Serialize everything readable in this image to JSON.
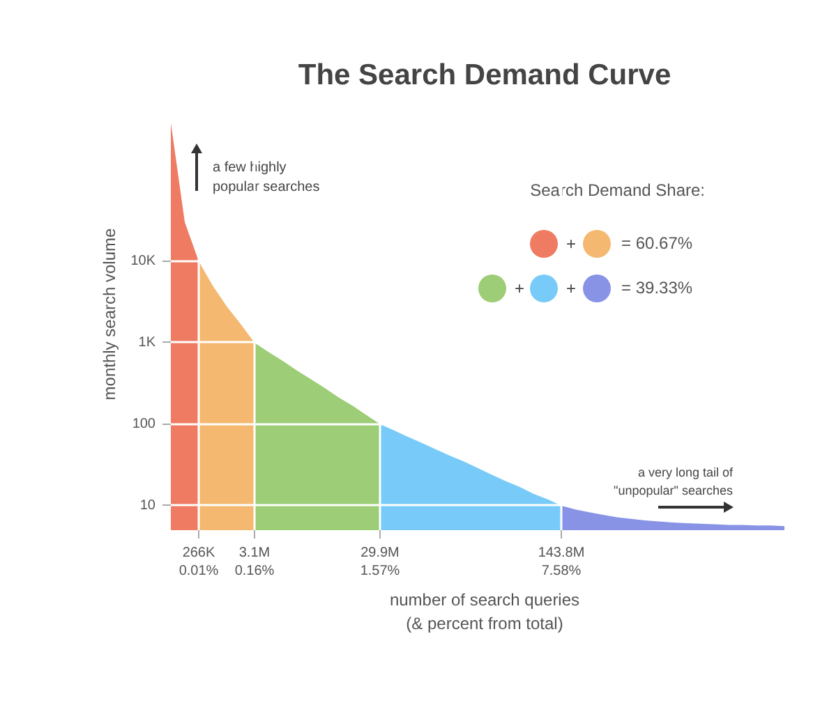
{
  "chart_data": {
    "type": "area",
    "title": "The Search Demand Curve",
    "xlabel": "number of search queries\n(& percent from total)",
    "ylabel": "monthly search volume",
    "categories": [
      null,
      null,
      "266K\n0.01%",
      null,
      null,
      null,
      "3.1M\n0.16%",
      null,
      null,
      null,
      null,
      null,
      null,
      null,
      null,
      "29.9M\n1.57%",
      null,
      null,
      null,
      null,
      null,
      null,
      null,
      null,
      null,
      null,
      null,
      null,
      "143.8M\n7.58%",
      null,
      null,
      null,
      null,
      null,
      null,
      null,
      null,
      null,
      null,
      null,
      null,
      null,
      null,
      null,
      null
    ],
    "log": "y",
    "ylim": [
      5,
      1000000
    ],
    "yticks": [
      10,
      100,
      {
        "value": 1000,
        "label": "1K"
      },
      {
        "value": 10000,
        "label": "10K"
      }
    ],
    "grid": true,
    "series": [
      {
        "color": "#ee7b62",
        "values": [
          500000,
          30000,
          10000,
          null,
          null,
          null,
          null,
          null,
          null,
          null,
          null,
          null,
          null,
          null,
          null,
          null,
          null,
          null,
          null,
          null,
          null,
          null,
          null,
          null,
          null,
          null,
          null,
          null,
          null,
          null,
          null,
          null,
          null,
          null,
          null,
          null,
          null,
          null,
          null,
          null,
          null,
          null,
          null,
          null,
          null
        ]
      },
      {
        "color": "#f4b870",
        "values": [
          null,
          null,
          10000,
          5000,
          2800,
          1700,
          1000,
          null,
          null,
          null,
          null,
          null,
          null,
          null,
          null,
          null,
          null,
          null,
          null,
          null,
          null,
          null,
          null,
          null,
          null,
          null,
          null,
          null,
          null,
          null,
          null,
          null,
          null,
          null,
          null,
          null,
          null,
          null,
          null,
          null,
          null,
          null,
          null,
          null,
          null
        ]
      },
      {
        "color": "#9dcd77",
        "values": [
          null,
          null,
          null,
          null,
          null,
          null,
          1000,
          770,
          600,
          460,
          360,
          280,
          215,
          170,
          130,
          100,
          null,
          null,
          null,
          null,
          null,
          null,
          null,
          null,
          null,
          null,
          null,
          null,
          null,
          null,
          null,
          null,
          null,
          null,
          null,
          null,
          null,
          null,
          null,
          null,
          null,
          null,
          null,
          null,
          null
        ]
      },
      {
        "color": "#78cbf8",
        "values": [
          null,
          null,
          null,
          null,
          null,
          null,
          null,
          null,
          null,
          null,
          null,
          null,
          null,
          null,
          null,
          100,
          84,
          70,
          59,
          49,
          41,
          35,
          29,
          24,
          20,
          17,
          14,
          12,
          10,
          null,
          null,
          null,
          null,
          null,
          null,
          null,
          null,
          null,
          null,
          null,
          null,
          null,
          null,
          null,
          null
        ]
      },
      {
        "color": "#8893e6",
        "values": [
          null,
          null,
          null,
          null,
          null,
          null,
          null,
          null,
          null,
          null,
          null,
          null,
          null,
          null,
          null,
          null,
          null,
          null,
          null,
          null,
          null,
          null,
          null,
          null,
          null,
          null,
          null,
          null,
          10,
          9,
          8.3,
          7.7,
          7.2,
          6.9,
          6.6,
          6.4,
          6.2,
          6.1,
          6,
          5.9,
          5.8,
          5.8,
          5.7,
          5.7,
          5.6
        ]
      }
    ],
    "annotations": [
      "a few highly\npopular searches",
      "Search Demand Share:",
      "+",
      "= 60.67%",
      "+",
      "+",
      "= 39.33%",
      "a very long tail of\n\"unpopular\" searches"
    ]
  }
}
